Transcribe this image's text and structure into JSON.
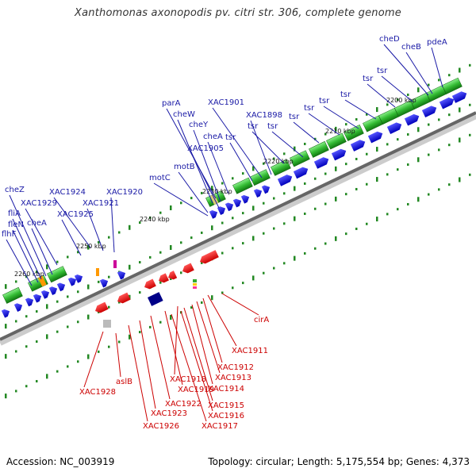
{
  "title": "Xanthomonas axonopodis pv. citri str. 306, complete genome",
  "footer": {
    "accession": "Accession: NC_003919",
    "stats": "Topology: circular; Length: 5,175,554 bp; Genes: 4,373"
  },
  "colors": {
    "forward_gene": "#0000ee",
    "reverse_gene": "#ee0000",
    "cds_green": "#33aa33",
    "tick_green": "#228822",
    "backbone": "#666666"
  },
  "kbp_ticks": [
    "2200 kbp",
    "2210 kbp",
    "2220 kbp",
    "2230 kbp",
    "2240 kbp",
    "2250 kbp",
    "2260 kbp"
  ],
  "forward_labels": [
    "cheD",
    "cheB",
    "pdeA",
    "tsr",
    "tsr",
    "tsr",
    "tsr",
    "tsr",
    "tsr",
    "tsr",
    "tsr",
    "XAC1901",
    "XAC1898",
    "tsr",
    "parA",
    "cheW",
    "cheY",
    "cheA",
    "XAC1905",
    "motB",
    "motC",
    "XAC1924",
    "XAC1920",
    "XAC1929",
    "XAC1921",
    "XAC1925",
    "cheZ",
    "fliA",
    "fleN",
    "cheA",
    "flhF"
  ],
  "reverse_labels": [
    "cirA",
    "XAC1911",
    "XAC1912",
    "XAC1913",
    "XAC1914",
    "XAC1918",
    "XAC1919",
    "XAC1915",
    "XAC1916",
    "XAC1917",
    "XAC1922",
    "XAC1923",
    "XAC1926",
    "aslB",
    "XAC1928"
  ]
}
